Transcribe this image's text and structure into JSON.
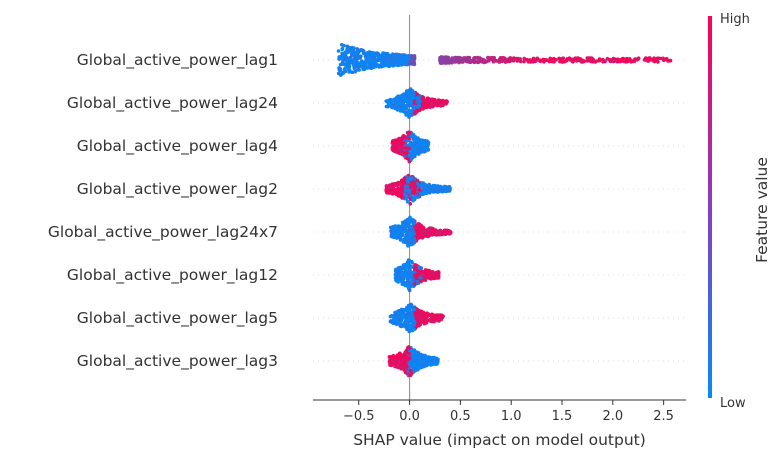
{
  "chart_data": {
    "type": "scatter",
    "subtype": "shap-beeswarm",
    "title": "",
    "xlabel": "SHAP value (impact on model output)",
    "xlim": [
      -0.95,
      2.72
    ],
    "xticks": [
      -0.5,
      0.0,
      0.5,
      1.0,
      1.5,
      2.0,
      2.5
    ],
    "xtick_labels": [
      "−0.5",
      "0.0",
      "0.5",
      "1.0",
      "1.5",
      "2.0",
      "2.5"
    ],
    "zero_line": 0.0,
    "colorbar": {
      "label": "Feature value",
      "high_label": "High",
      "low_label": "Low",
      "low_color": "#008bfb",
      "high_color": "#ff0052"
    },
    "features": [
      {
        "name": "Global_active_power_lag1",
        "min": -0.7,
        "max": 2.58,
        "blue_range": [
          -0.7,
          0.05
        ],
        "red_range": [
          0.3,
          2.58
        ]
      },
      {
        "name": "Global_active_power_lag24",
        "min": -0.23,
        "max": 0.37,
        "blue_range": [
          -0.23,
          0.1
        ],
        "red_range": [
          0.05,
          0.37
        ]
      },
      {
        "name": "Global_active_power_lag4",
        "min": -0.17,
        "max": 0.19,
        "blue_range": [
          -0.06,
          0.19
        ],
        "red_range": [
          -0.17,
          0.0
        ]
      },
      {
        "name": "Global_active_power_lag2",
        "min": -0.23,
        "max": 0.4,
        "blue_range": [
          -0.05,
          0.4
        ],
        "red_range": [
          -0.23,
          0.1
        ]
      },
      {
        "name": "Global_active_power_lag24x7",
        "min": -0.19,
        "max": 0.41,
        "blue_range": [
          -0.19,
          0.05
        ],
        "red_range": [
          0.05,
          0.41
        ]
      },
      {
        "name": "Global_active_power_lag12",
        "min": -0.14,
        "max": 0.29,
        "blue_range": [
          -0.14,
          0.12
        ],
        "red_range": [
          0.05,
          0.29
        ]
      },
      {
        "name": "Global_active_power_lag5",
        "min": -0.19,
        "max": 0.33,
        "blue_range": [
          -0.19,
          0.05
        ],
        "red_range": [
          0.05,
          0.33
        ]
      },
      {
        "name": "Global_active_power_lag3",
        "min": -0.2,
        "max": 0.28,
        "blue_range": [
          -0.02,
          0.28
        ],
        "red_range": [
          -0.2,
          0.02
        ]
      }
    ]
  }
}
